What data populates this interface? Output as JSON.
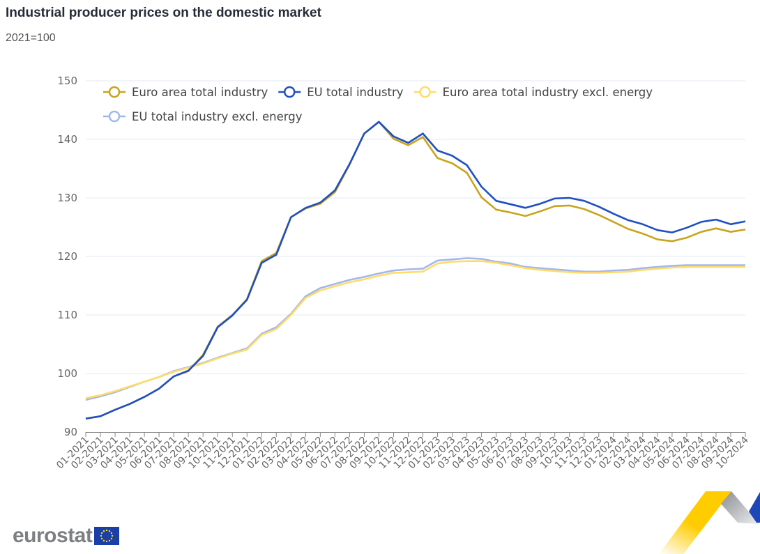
{
  "header": {
    "title": "Industrial producer prices on the domestic market",
    "subtitle": "2021=100"
  },
  "branding": {
    "logo_text": "eurostat",
    "flag_icon": "eu-flag-icon"
  },
  "chart_data": {
    "type": "line",
    "title": "Industrial producer prices on the domestic market",
    "subtitle": "2021=100",
    "xlabel": "",
    "ylabel": "",
    "ylim": [
      90,
      150
    ],
    "yticks": [
      90,
      100,
      110,
      120,
      130,
      140,
      150
    ],
    "grid": true,
    "legend_position": "top-left",
    "x": [
      "01-2021",
      "02-2021",
      "03-2021",
      "04-2021",
      "05-2021",
      "06-2021",
      "07-2021",
      "08-2021",
      "09-2021",
      "10-2021",
      "11-2021",
      "12-2021",
      "01-2022",
      "02-2022",
      "03-2022",
      "04-2022",
      "05-2022",
      "06-2022",
      "07-2022",
      "08-2022",
      "09-2022",
      "10-2022",
      "11-2022",
      "12-2022",
      "01-2023",
      "02-2023",
      "03-2023",
      "04-2023",
      "05-2023",
      "06-2023",
      "07-2023",
      "08-2023",
      "09-2023",
      "10-2023",
      "11-2023",
      "12-2023",
      "01-2024",
      "02-2024",
      "03-2024",
      "04-2024",
      "05-2024",
      "06-2024",
      "07-2024",
      "08-2024",
      "09-2024",
      "10-2024"
    ],
    "series": [
      {
        "name": "EU total industry excl. energy",
        "color": "#a3b7ea",
        "values": [
          95.5,
          96.1,
          96.8,
          97.7,
          98.6,
          99.4,
          100.4,
          101.1,
          101.8,
          102.7,
          103.5,
          104.3,
          106.8,
          107.9,
          110.2,
          113.2,
          114.6,
          115.3,
          116.0,
          116.5,
          117.1,
          117.6,
          117.8,
          117.9,
          119.3,
          119.5,
          119.7,
          119.6,
          119.1,
          118.8,
          118.2,
          118.0,
          117.8,
          117.6,
          117.4,
          117.4,
          117.6,
          117.7,
          118.0,
          118.2,
          118.4,
          118.5,
          118.5,
          118.5,
          118.5,
          118.5
        ]
      },
      {
        "name": "Euro area total industry excl. energy",
        "color": "#ffdc6a",
        "values": [
          95.8,
          96.3,
          97.0,
          97.8,
          98.6,
          99.4,
          100.3,
          101.0,
          101.7,
          102.6,
          103.4,
          104.1,
          106.6,
          107.6,
          110.0,
          112.9,
          114.2,
          114.9,
          115.6,
          116.1,
          116.7,
          117.2,
          117.3,
          117.4,
          118.8,
          119.1,
          119.2,
          119.2,
          118.9,
          118.5,
          118.0,
          117.7,
          117.5,
          117.3,
          117.2,
          117.2,
          117.3,
          117.4,
          117.7,
          117.9,
          118.1,
          118.2,
          118.2,
          118.2,
          118.2,
          118.2
        ]
      },
      {
        "name": "Euro area total industry",
        "color": "#c9a41b",
        "values": [
          92.3,
          92.7,
          93.8,
          94.8,
          96.0,
          97.4,
          99.5,
          100.4,
          103.2,
          108.0,
          110.0,
          112.7,
          119.2,
          120.6,
          126.7,
          128.2,
          129.0,
          131.0,
          135.7,
          141.0,
          143.0,
          140.1,
          139.0,
          140.4,
          136.8,
          135.9,
          134.3,
          130.1,
          128.0,
          127.5,
          126.9,
          127.7,
          128.6,
          128.7,
          128.1,
          127.1,
          125.9,
          124.7,
          123.9,
          122.9,
          122.6,
          123.2,
          124.2,
          124.8,
          124.2,
          124.6
        ]
      },
      {
        "name": "EU total industry",
        "color": "#1f4fc1",
        "values": [
          92.3,
          92.7,
          93.8,
          94.8,
          96.0,
          97.4,
          99.5,
          100.5,
          103.0,
          107.9,
          109.9,
          112.6,
          118.9,
          120.3,
          126.7,
          128.3,
          129.2,
          131.3,
          135.8,
          141.0,
          143.0,
          140.5,
          139.4,
          141.0,
          138.1,
          137.2,
          135.6,
          131.9,
          129.5,
          128.9,
          128.3,
          129.0,
          129.9,
          130.0,
          129.5,
          128.5,
          127.3,
          126.2,
          125.5,
          124.5,
          124.1,
          124.9,
          125.9,
          126.3,
          125.5,
          126.0
        ]
      }
    ],
    "legend": [
      {
        "label": "Euro area total industry",
        "color": "#c9a41b"
      },
      {
        "label": "EU total industry",
        "color": "#1f4fc1"
      },
      {
        "label": "Euro area total industry excl. energy",
        "color": "#ffdc6a"
      },
      {
        "label": "EU total industry excl. energy",
        "color": "#a3b7ea"
      }
    ]
  }
}
